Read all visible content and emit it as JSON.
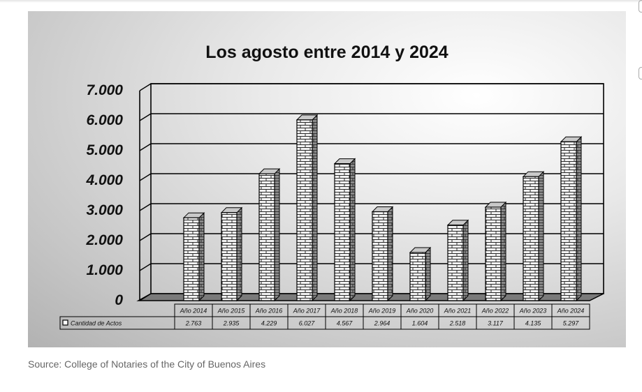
{
  "source": "Source: College of Notaries of the City of Buenos Aires",
  "table": {
    "legend_label": "Cantidad de Actos"
  },
  "colors": {
    "bar_face": "#f4f4f4",
    "mortar": "#2a2a2a",
    "bar_side": "#8a8a8a",
    "grid": "#000000"
  },
  "chart_data": {
    "type": "bar",
    "title": "Los agosto entre 2014 y 2024",
    "categories": [
      "Año 2014",
      "Año 2015",
      "Año 2016",
      "Año 2017",
      "Año 2018",
      "Año 2019",
      "Año 2020",
      "Año 2021",
      "Año 2022",
      "Año 2023",
      "Año 2024"
    ],
    "series": [
      {
        "name": "Cantidad de Actos",
        "values": [
          2763,
          2935,
          4229,
          6027,
          4567,
          2964,
          1604,
          2518,
          3117,
          4135,
          5297
        ],
        "value_labels": [
          "2.763",
          "2.935",
          "4.229",
          "6.027",
          "4.567",
          "2.964",
          "1.604",
          "2.518",
          "3.117",
          "4.135",
          "5.297"
        ]
      }
    ],
    "ylim": [
      0,
      7000
    ],
    "yticks": [
      0,
      1000,
      2000,
      3000,
      4000,
      5000,
      6000,
      7000
    ],
    "ytick_labels": [
      "0",
      "1.000",
      "2.000",
      "3.000",
      "4.000",
      "5.000",
      "6.000",
      "7.000"
    ],
    "grid": true,
    "style": "3d-brick-columns",
    "data_table": true
  }
}
